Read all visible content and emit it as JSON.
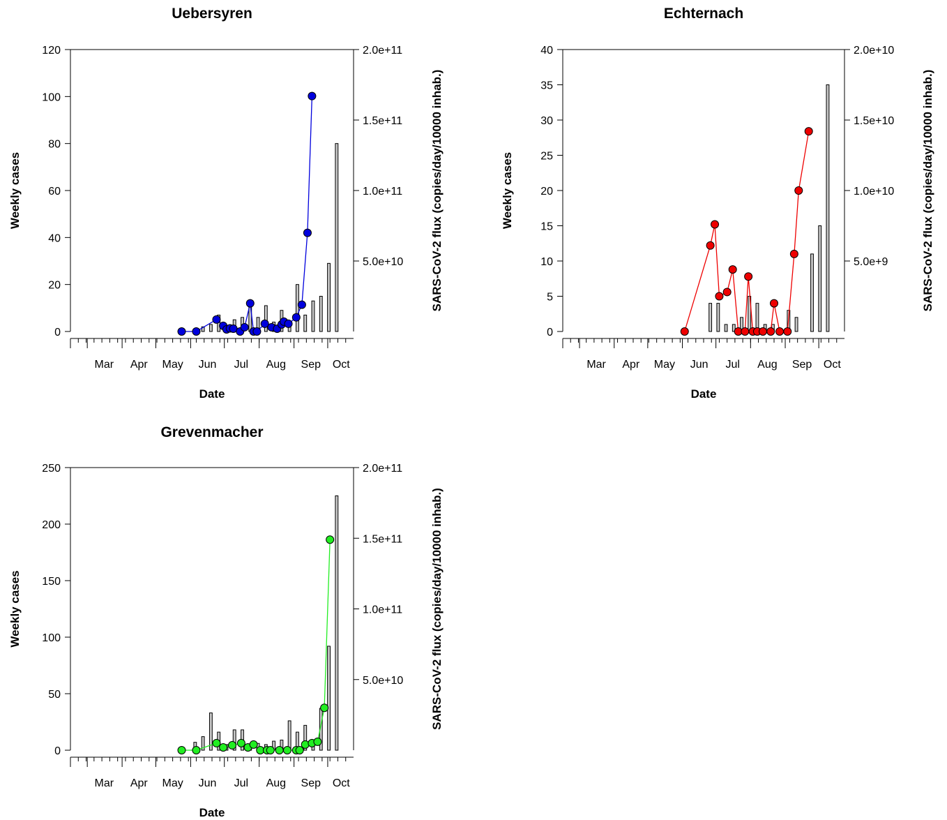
{
  "chart_data": [
    {
      "type": "bar+line",
      "title": "Uebersyren",
      "xlabel": "Date",
      "ylabel": "Weekly cases",
      "y2label": "SARS-CoV-2 flux (copies/day/10000 inhab.)",
      "ylim": [
        0,
        120
      ],
      "y2lim": [
        0,
        200000000000.0
      ],
      "xlim": [
        "2020-02-15",
        "2020-10-24"
      ],
      "x_ticks": [
        "Mar",
        "Apr",
        "May",
        "Jun",
        "Jul",
        "Aug",
        "Sep",
        "Oct"
      ],
      "y_ticks": [
        "0",
        "20",
        "40",
        "60",
        "80",
        "100",
        "120"
      ],
      "y2_ticks": [
        "5.0e+10",
        "1.0e+11",
        "1.5e+11",
        "2.0e+11"
      ],
      "line_color": "#0000dd",
      "bars": {
        "name": "Weekly cases",
        "dates": [
          "2020-06-05",
          "2020-06-12",
          "2020-06-19",
          "2020-06-26",
          "2020-07-03",
          "2020-07-10",
          "2020-07-17",
          "2020-07-24",
          "2020-07-31",
          "2020-08-07",
          "2020-08-14",
          "2020-08-21",
          "2020-08-28",
          "2020-09-04",
          "2020-09-11",
          "2020-09-18",
          "2020-09-25",
          "2020-10-02",
          "2020-10-09"
        ],
        "values": [
          1,
          2,
          3,
          7,
          1,
          5,
          6,
          11,
          6,
          11,
          4,
          9,
          2,
          20,
          7,
          13,
          15,
          29,
          80
        ]
      },
      "series": [
        {
          "dates": [
            "2020-05-24",
            "2020-06-06",
            "2020-06-24",
            "2020-06-30",
            "2020-07-03",
            "2020-07-06",
            "2020-07-09",
            "2020-07-15",
            "2020-07-19",
            "2020-07-24",
            "2020-07-27",
            "2020-07-30",
            "2020-08-06",
            "2020-08-12",
            "2020-08-17",
            "2020-08-21",
            "2020-08-23",
            "2020-08-27",
            "2020-09-03",
            "2020-09-08",
            "2020-09-13",
            "2020-09-17"
          ],
          "values": [
            0.0,
            0.0,
            8500000000.0,
            4000000000.0,
            1500000000.0,
            2200000000.0,
            2000000000.0,
            0.0,
            3000000000.0,
            20000000000.0,
            0.0,
            0.0,
            5500000000.0,
            3000000000.0,
            2000000000.0,
            5000000000.0,
            7000000000.0,
            5500000000.0,
            10000000000.0,
            19000000000.0,
            70000000000.0,
            167000000000.0
          ]
        }
      ]
    },
    {
      "type": "bar+line",
      "title": "Echternach",
      "xlabel": "Date",
      "ylabel": "Weekly cases",
      "y2label": "SARS-CoV-2 flux (copies/day/10000 inhab.)",
      "ylim": [
        0,
        40
      ],
      "y2lim": [
        0,
        20000000000.0
      ],
      "xlim": [
        "2020-02-15",
        "2020-10-24"
      ],
      "x_ticks": [
        "Mar",
        "Apr",
        "May",
        "Jun",
        "Jul",
        "Aug",
        "Sep",
        "Oct"
      ],
      "y_ticks": [
        "0",
        "5",
        "10",
        "15",
        "20",
        "25",
        "30",
        "35",
        "40"
      ],
      "y2_ticks": [
        "5.0e+9",
        "1.0e+10",
        "1.5e+10",
        "2.0e+10"
      ],
      "line_color": "#ee0000",
      "bars": {
        "name": "Weekly cases",
        "dates": [
          "2020-06-26",
          "2020-07-03",
          "2020-07-10",
          "2020-07-17",
          "2020-07-24",
          "2020-07-31",
          "2020-08-07",
          "2020-08-14",
          "2020-08-21",
          "2020-08-28",
          "2020-09-04",
          "2020-09-11",
          "2020-09-18",
          "2020-09-25",
          "2020-10-02",
          "2020-10-09"
        ],
        "values": [
          4,
          4,
          1,
          1,
          2,
          5,
          4,
          1,
          1,
          0,
          3,
          2,
          0,
          11,
          15,
          35
        ]
      },
      "series": [
        {
          "dates": [
            "2020-06-03",
            "2020-06-26",
            "2020-06-30",
            "2020-07-04",
            "2020-07-11",
            "2020-07-16",
            "2020-07-21",
            "2020-07-27",
            "2020-07-30",
            "2020-08-03",
            "2020-08-07",
            "2020-08-12",
            "2020-08-19",
            "2020-08-22",
            "2020-08-27",
            "2020-09-03",
            "2020-09-09",
            "2020-09-13",
            "2020-09-22"
          ],
          "values": [
            0.0,
            6100000000.0,
            7600000000.0,
            2500000000.0,
            2800000000.0,
            4400000000.0,
            0.0,
            0.0,
            3900000000.0,
            0.0,
            0.0,
            0.0,
            0.0,
            2000000000.0,
            0.0,
            0.0,
            5500000000.0,
            10000000000.0,
            14200000000.0
          ]
        }
      ]
    },
    {
      "type": "bar+line",
      "title": "Grevenmacher",
      "xlabel": "Date",
      "ylabel": "Weekly cases",
      "y2label": "SARS-CoV-2 flux (copies/day/10000 inhab.)",
      "ylim": [
        0,
        250
      ],
      "y2lim": [
        0,
        200000000000.0
      ],
      "xlim": [
        "2020-02-15",
        "2020-10-24"
      ],
      "x_ticks": [
        "Mar",
        "Apr",
        "May",
        "Jun",
        "Jul",
        "Aug",
        "Sep",
        "Oct"
      ],
      "y_ticks": [
        "0",
        "50",
        "100",
        "150",
        "200",
        "250"
      ],
      "y2_ticks": [
        "5.0e+10",
        "1.0e+11",
        "1.5e+11",
        "2.0e+11"
      ],
      "line_color": "#22ee22",
      "bars": {
        "name": "Weekly cases",
        "dates": [
          "2020-06-05",
          "2020-06-12",
          "2020-06-19",
          "2020-06-26",
          "2020-07-03",
          "2020-07-10",
          "2020-07-17",
          "2020-07-24",
          "2020-07-31",
          "2020-08-07",
          "2020-08-14",
          "2020-08-21",
          "2020-08-28",
          "2020-09-04",
          "2020-09-11",
          "2020-09-18",
          "2020-09-25",
          "2020-10-02",
          "2020-10-09"
        ],
        "values": [
          7,
          12,
          33,
          16,
          5,
          18,
          18,
          5,
          6,
          5,
          8,
          9,
          26,
          16,
          22,
          8,
          37,
          92,
          225
        ]
      },
      "series": [
        {
          "dates": [
            "2020-05-24",
            "2020-06-06",
            "2020-06-24",
            "2020-06-30",
            "2020-07-08",
            "2020-07-16",
            "2020-07-22",
            "2020-07-27",
            "2020-08-02",
            "2020-08-08",
            "2020-08-11",
            "2020-08-19",
            "2020-08-26",
            "2020-09-03",
            "2020-09-06",
            "2020-09-11",
            "2020-09-17",
            "2020-09-22",
            "2020-09-28",
            "2020-10-03"
          ],
          "values": [
            0.0,
            0.0,
            5000000000.0,
            2000000000.0,
            3500000000.0,
            5000000000.0,
            2000000000.0,
            4000000000.0,
            0.0,
            0.0,
            0.0,
            0.0,
            0.0,
            0.0,
            0.0,
            4000000000.0,
            5000000000.0,
            6000000000.0,
            30000000000.0,
            149000000000.0
          ]
        }
      ]
    }
  ]
}
